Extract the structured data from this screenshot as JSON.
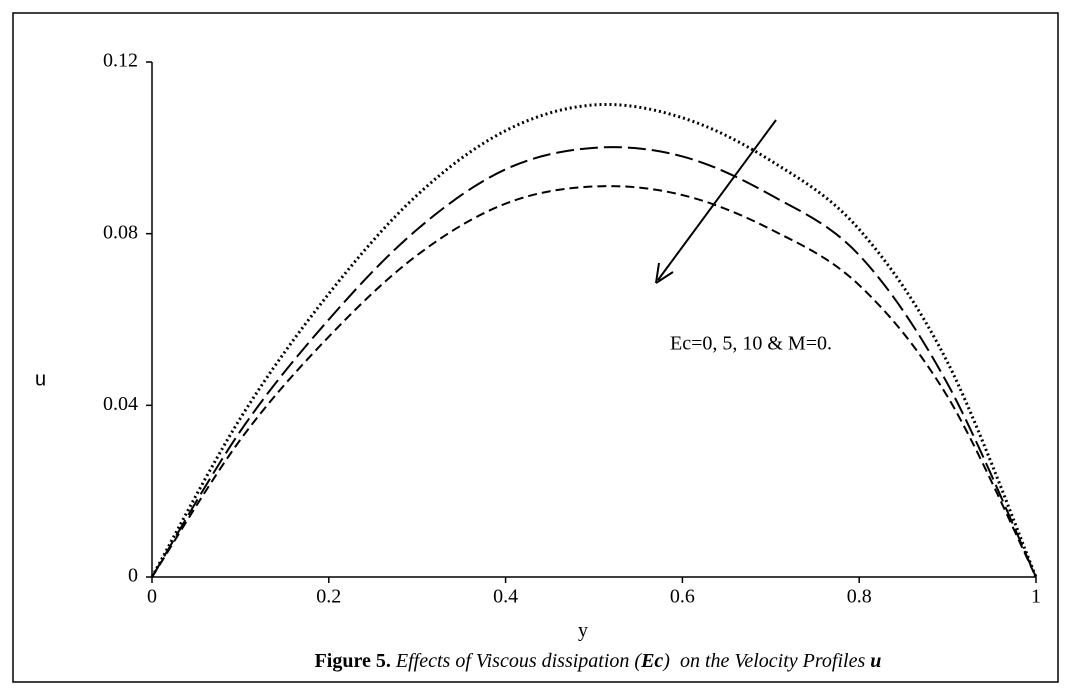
{
  "chart_data": {
    "type": "line",
    "caption": [
      "Figure 5.",
      " Effects of Viscous dissipation (",
      "Ec",
      ")  on the Velocity Profiles ",
      "u"
    ],
    "x_label": "y",
    "y_label": "u",
    "annotation": "Ec=0, 5, 10 & M=0.",
    "x": [
      0,
      0.1,
      0.2,
      0.3,
      0.4,
      0.5,
      0.6,
      0.7,
      0.8,
      0.9,
      1
    ],
    "series": [
      {
        "color": "#000000",
        "dash": "dotted",
        "values": [
          0,
          0.037,
          0.066,
          0.089,
          0.104,
          0.11,
          0.107,
          0.097,
          0.081,
          0.05,
          0
        ]
      },
      {
        "color": "#000000",
        "dash": "long-dash",
        "values": [
          0,
          0.034,
          0.06,
          0.081,
          0.095,
          0.1,
          0.098,
          0.089,
          0.075,
          0.045,
          0
        ]
      },
      {
        "color": "#000000",
        "dash": "dash",
        "values": [
          0,
          0.032,
          0.056,
          0.075,
          0.087,
          0.091,
          0.089,
          0.081,
          0.068,
          0.042,
          0
        ]
      }
    ],
    "xlim": [
      0,
      1
    ],
    "xticks": [
      0,
      0.2,
      0.4,
      0.6,
      0.8,
      1
    ],
    "ylim": [
      0,
      0.12
    ],
    "yticks": [
      0,
      0.04,
      0.08,
      0.12
    ],
    "grid": false
  }
}
